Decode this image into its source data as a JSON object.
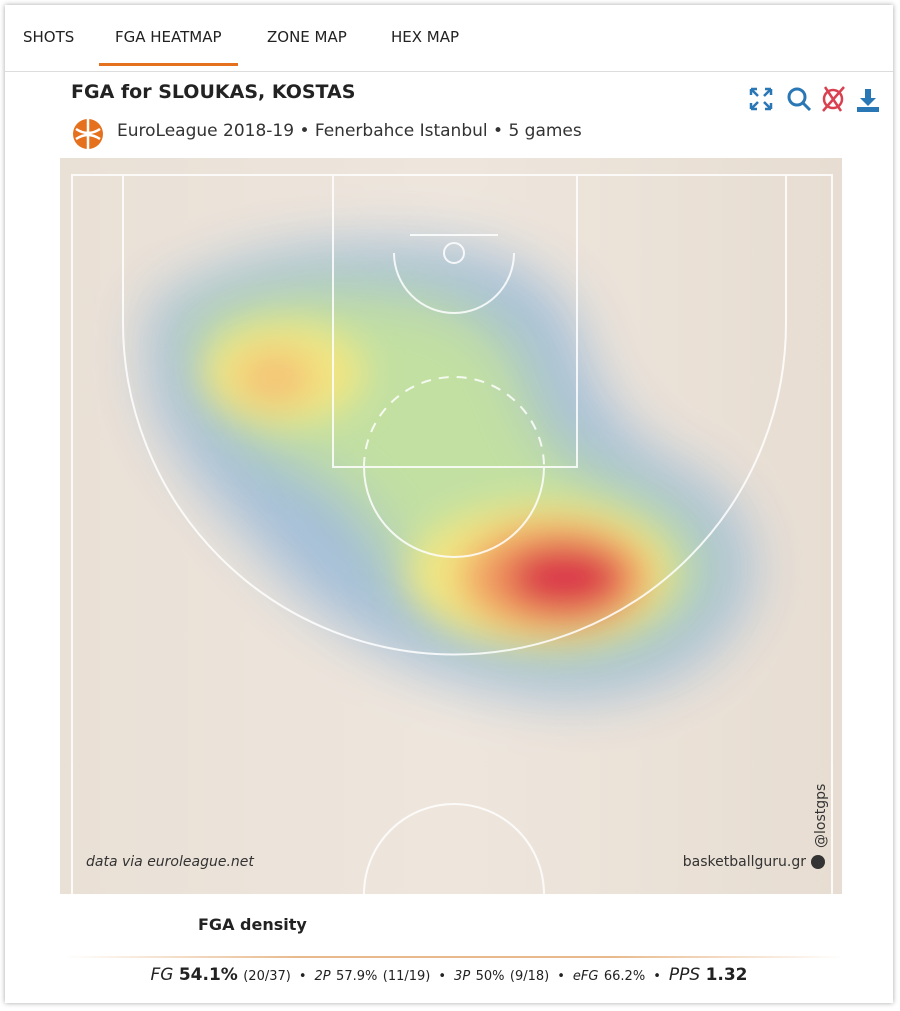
{
  "tabs": [
    "SHOTS",
    "FGA HEATMAP",
    "ZONE MAP",
    "HEX MAP"
  ],
  "active_tab": 1,
  "header": {
    "title": "FGA for SLOUKAS, KOSTAS",
    "subtitle": "EuroLeague 2018-19 • Fenerbahce Istanbul • 5 games"
  },
  "watermarks": {
    "source": "data via euroleague.net",
    "site": "basketballguru.gr",
    "handle": "@lostgps"
  },
  "legend": {
    "label": "FGA density"
  },
  "stats": {
    "separator": "•",
    "items": [
      {
        "label": "FG",
        "value": "54.1%",
        "detail": "(20/37)"
      },
      {
        "label": "2P",
        "value": "57.9%",
        "detail": "(11/19)"
      },
      {
        "label": "3P",
        "value": "50%",
        "detail": "(9/18)"
      },
      {
        "label": "eFG",
        "value": "66.2%"
      },
      {
        "label": "PPS",
        "value": "1.32"
      }
    ]
  }
}
